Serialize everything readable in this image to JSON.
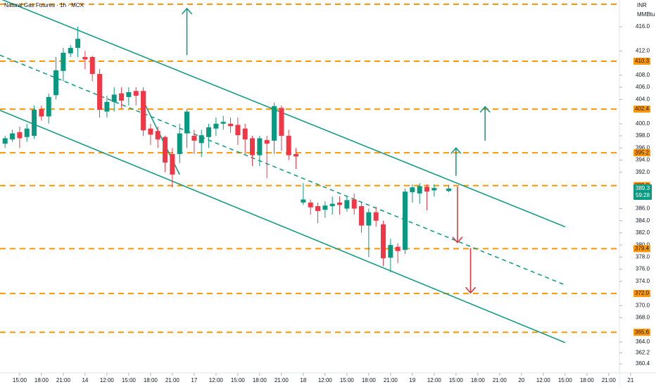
{
  "chart_data": {
    "type": "candlestick",
    "title": "Natural Gas Futures · 1h · MCX",
    "currency": "INR",
    "unit": "MMBtu",
    "up_color": "#089981",
    "down_color": "#f23645",
    "level_color": "#ff9800",
    "line_color": "#089981",
    "x": [
      -2,
      -1,
      0,
      1,
      2,
      3,
      4,
      5,
      6,
      7,
      8,
      9,
      10,
      11,
      12,
      13,
      14,
      15,
      16,
      17,
      18,
      19,
      20,
      21,
      22,
      23,
      24,
      25,
      26,
      27,
      28,
      29,
      30,
      31,
      32,
      33,
      34,
      35,
      36,
      37,
      38,
      39,
      40,
      41,
      42,
      43,
      44,
      45,
      46,
      47,
      48,
      49,
      50,
      51,
      52,
      53,
      54,
      55,
      56,
      57,
      59
    ],
    "open": [
      396.7,
      397.4,
      398.6,
      397.8,
      398,
      402.4,
      401.2,
      404.7,
      408.7,
      411.6,
      412.5,
      411,
      411,
      408.2,
      402,
      403.6,
      405,
      404.4,
      405.4,
      405.4,
      399.2,
      398.8,
      397.8,
      395,
      395,
      398.4,
      398,
      396.8,
      397.8,
      399.2,
      400,
      400,
      399.8,
      399.2,
      397.6,
      394.8,
      397.3,
      397.2,
      402.6,
      398,
      395,
      387,
      387,
      386.4,
      385.8,
      386.4,
      387,
      386,
      387.5,
      386.4,
      383.2,
      385.4,
      383.4,
      377.9,
      379.7,
      379.2,
      388.7,
      388.5,
      389.6,
      389,
      388.9
    ],
    "high": [
      398,
      399,
      399.5,
      400,
      403,
      403,
      405,
      411,
      412.5,
      413,
      416,
      412,
      411.2,
      409,
      404.6,
      406,
      406,
      406,
      406,
      406,
      400,
      399.5,
      398,
      396,
      400,
      402.4,
      399,
      399,
      400,
      401,
      401.3,
      401,
      401,
      400,
      398,
      398,
      398,
      403.5,
      403,
      399,
      396,
      390.2,
      387.5,
      387,
      387.2,
      388,
      388,
      388,
      388.5,
      387,
      386,
      386.3,
      384,
      381,
      380.3,
      389.3,
      390,
      390.2,
      390,
      390,
      389.9
    ],
    "low": [
      396,
      397,
      396,
      397,
      397.5,
      400.5,
      400,
      404,
      407,
      411,
      411,
      409,
      407,
      401,
      401,
      402,
      402.5,
      403,
      403,
      398,
      396.5,
      396,
      392,
      389.5,
      393.5,
      396,
      395,
      394.5,
      396,
      398,
      399,
      398.5,
      396.5,
      395,
      393,
      393,
      391,
      395,
      395.5,
      394,
      392.5,
      386.6,
      385,
      383.6,
      384.5,
      385,
      385,
      385.5,
      385,
      382,
      378,
      383,
      376.5,
      375.5,
      377,
      378.5,
      387,
      386.8,
      385.7,
      388,
      388.7
    ],
    "close": [
      397.6,
      398.4,
      397.6,
      399.2,
      402.3,
      401.2,
      404.4,
      408.8,
      411.7,
      412.5,
      414,
      410.6,
      408.2,
      402.3,
      403.6,
      404.8,
      403.8,
      405.2,
      404.6,
      398.9,
      398.2,
      397.4,
      393.6,
      391.6,
      398.4,
      402,
      397.2,
      398.1,
      399.4,
      400,
      400.3,
      399.6,
      398.1,
      397.4,
      394.8,
      397.6,
      396.7,
      402.9,
      398,
      394.8,
      394.6,
      387.5,
      386.2,
      385.6,
      386.5,
      386.8,
      386.6,
      387.4,
      386,
      383.2,
      385.4,
      384,
      377.8,
      380,
      379,
      388.8,
      389.5,
      389.7,
      388.8,
      389.4,
      389.3
    ],
    "countdown": "59:28",
    "xlim": [
      -2.7,
      87.5
    ],
    "ylim": [
      358.9,
      420.4
    ],
    "xticks": [
      {
        "value": 0,
        "label": "15:00"
      },
      {
        "value": 3,
        "label": "18:00"
      },
      {
        "value": 6,
        "label": "21:00"
      },
      {
        "value": 9,
        "label": "14"
      },
      {
        "value": 12,
        "label": "12:00"
      },
      {
        "value": 15,
        "label": "15:00"
      },
      {
        "value": 18,
        "label": "18:00"
      },
      {
        "value": 21,
        "label": "21:00"
      },
      {
        "value": 24,
        "label": "17"
      },
      {
        "value": 27,
        "label": "12:00"
      },
      {
        "value": 30,
        "label": "15:00"
      },
      {
        "value": 33,
        "label": "18:00"
      },
      {
        "value": 36,
        "label": "21:00"
      },
      {
        "value": 39,
        "label": "18"
      },
      {
        "value": 42,
        "label": "12:00"
      },
      {
        "value": 45,
        "label": "15:00"
      },
      {
        "value": 48,
        "label": "18:00"
      },
      {
        "value": 51,
        "label": "21:00"
      },
      {
        "value": 54,
        "label": "19"
      },
      {
        "value": 57,
        "label": "12:00"
      },
      {
        "value": 60,
        "label": "15:00"
      },
      {
        "value": 63,
        "label": "18:00"
      },
      {
        "value": 66,
        "label": "21:00"
      },
      {
        "value": 69,
        "label": "20"
      },
      {
        "value": 72,
        "label": "12:00"
      },
      {
        "value": 75,
        "label": "15:00"
      },
      {
        "value": 78,
        "label": "18:00"
      },
      {
        "value": 81,
        "label": "21:00"
      },
      {
        "value": 84,
        "label": "21"
      }
    ],
    "yticks": [
      {
        "value": 416,
        "label": "416.0"
      },
      {
        "value": 412,
        "label": "412.0"
      },
      {
        "value": 408,
        "label": "408.0"
      },
      {
        "value": 406,
        "label": "406.0"
      },
      {
        "value": 404,
        "label": "404.0"
      },
      {
        "value": 400,
        "label": "400.0"
      },
      {
        "value": 398,
        "label": "398.0"
      },
      {
        "value": 396,
        "label": "396.0"
      },
      {
        "value": 394,
        "label": "394.0"
      },
      {
        "value": 392,
        "label": "392.0"
      },
      {
        "value": 386,
        "label": "386.0"
      },
      {
        "value": 384,
        "label": "384.0"
      },
      {
        "value": 382,
        "label": "382.0"
      },
      {
        "value": 380,
        "label": "380.0"
      },
      {
        "value": 378,
        "label": "378.0"
      },
      {
        "value": 376,
        "label": "376.0"
      },
      {
        "value": 374,
        "label": "374.0"
      },
      {
        "value": 370,
        "label": "370.0"
      },
      {
        "value": 368,
        "label": "368.0"
      },
      {
        "value": 364,
        "label": "364.0"
      },
      362.2,
      360.4
    ],
    "levels": [
      {
        "value": 419.7
      },
      410.3,
      402.4,
      395.2,
      389.8,
      379.4,
      {
        "value": 372,
        "label": "372.0"
      },
      365.6
    ],
    "trend_lines": [
      {
        "x": [
          -2.7,
          75
        ],
        "y": [
          420.6,
          383.0
        ],
        "dashed": false
      },
      {
        "x": [
          -2.7,
          75
        ],
        "y": [
          411.3,
          373.4
        ],
        "dashed": true
      },
      {
        "x": [
          -2.7,
          75
        ],
        "y": [
          402.2,
          363.9
        ],
        "dashed": false
      },
      {
        "x": [
          16.7,
          22
        ],
        "y": [
          404.5,
          391.6
        ],
        "dashed": false
      }
    ],
    "arrows": [
      {
        "x": 23,
        "y": [
          411.3,
          419
        ],
        "color": "#089981"
      },
      {
        "x": 64,
        "y": [
          397.2,
          402.8
        ],
        "color": "#089981"
      },
      {
        "x": 60,
        "y": [
          391.4,
          396
        ],
        "color": "#089981"
      },
      {
        "x": 60.2,
        "y": [
          389.6,
          380.4
        ],
        "color": "#e0303a"
      },
      {
        "x": 62,
        "y": [
          379.5,
          372.1
        ],
        "color": "#e0303a"
      }
    ]
  }
}
